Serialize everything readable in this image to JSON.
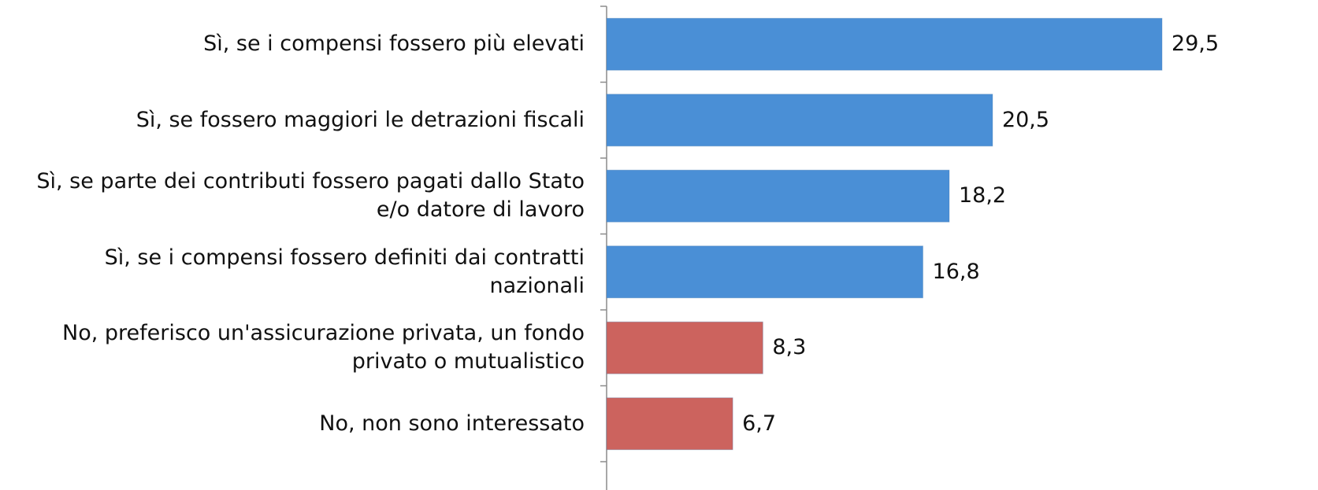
{
  "chart_data": {
    "type": "barh",
    "categories": [
      "Sì, se i compensi fossero più elevati",
      "Sì, se fossero maggiori le detrazioni fiscali",
      "Sì, se parte dei contributi fossero pagati dallo Stato e/o datore di lavoro",
      "Sì, se i compensi fossero definiti dai contratti nazionali",
      "No, preferisco un'assicurazione privata, un fondo privato o mutualistico",
      "No, non sono interessato"
    ],
    "values": [
      29.5,
      20.5,
      18.2,
      16.8,
      8.3,
      6.7
    ],
    "value_labels": [
      "29,5",
      "20,5",
      "18,2",
      "16,8",
      "8,3",
      "6,7"
    ],
    "colors": [
      "#4a8fd6",
      "#4a8fd6",
      "#4a8fd6",
      "#4a8fd6",
      "#cc635e",
      "#cc635e"
    ],
    "xlim": [
      0,
      30
    ]
  }
}
